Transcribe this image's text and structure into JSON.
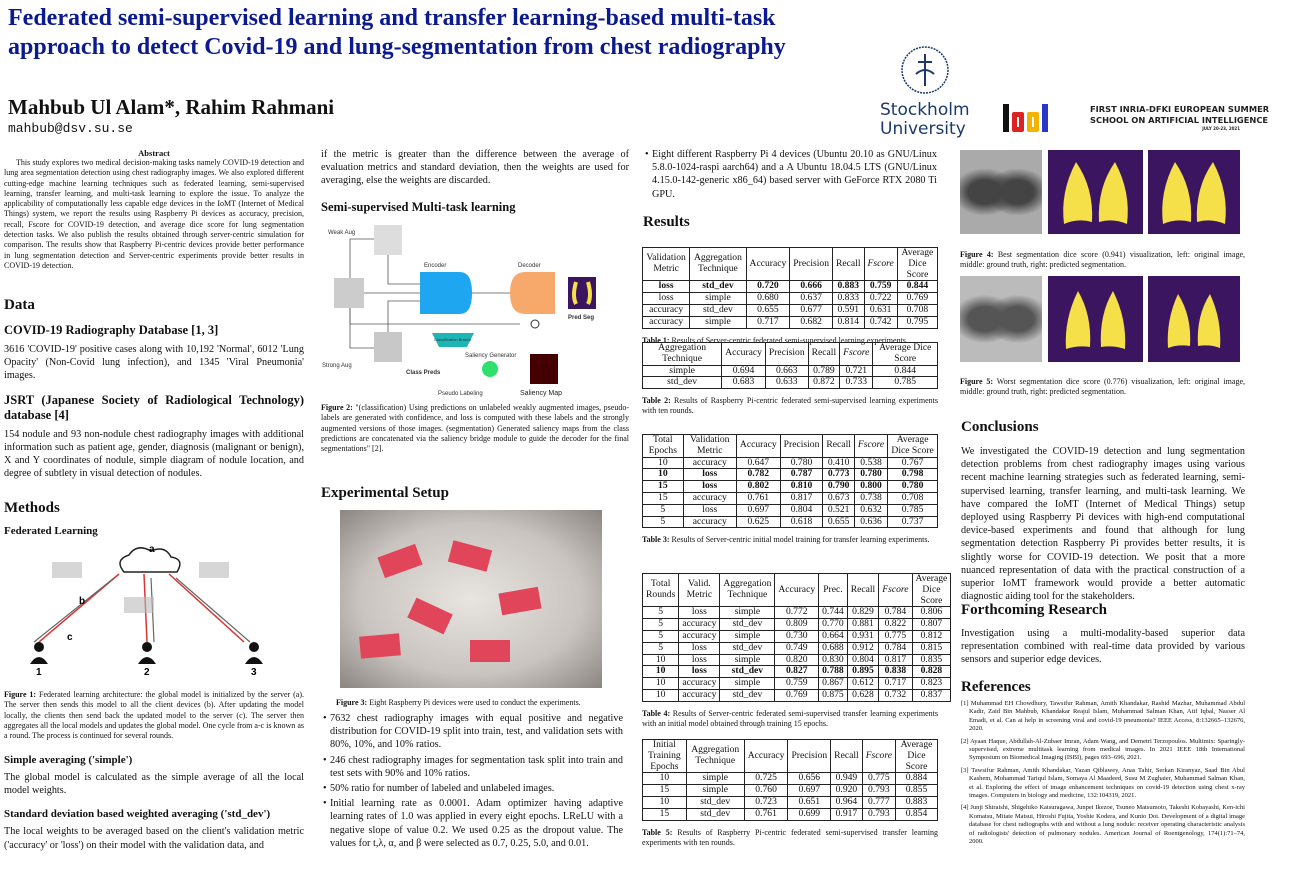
{
  "header": {
    "title": "Federated semi-supervised learning and transfer learning-based multi-task approach to detect Covid-19 and lung-segmentation from chest radiography",
    "authors": "Mahbub Ul Alam*, Rahim Rahmani",
    "email": "mahbub@dsv.su.se",
    "logos": {
      "su_line1": "Stockholm",
      "su_line2": "University",
      "idai": "idai",
      "school_line1": "FIRST INRIA-DFKI EUROPEAN SUMMER",
      "school_line2": "SCHOOL ON ARTIFICIAL INTELLIGENCE",
      "school_date": "JULY 20-23, 2021"
    }
  },
  "abstract": {
    "heading": "Abstract",
    "text": "This study explores two medical decision-making tasks namely COVID-19 detection and lung area segmentation detection using chest radiography images. We also explored different cutting-edge machine learning techniques such as federated learning, semi-supervised learning, transfer learning, and multi-task learning to explore the issue. To analyze the applicability of computationally less capable edge devices in the IoMT (Internet of Medical Things) system, we report the results using Raspberry Pi devices as accuracy, precision, recall, Fscore for COVID-19 detection, and average dice score for lung segmentation detection tasks. We also publish the results obtained through server-centric simulation for comparison. The results show that Raspberry Pi-centric devices provide better performance in lung segmentation detection and Server-centric experiments provide better results in COVID-19 detection."
  },
  "data": {
    "heading": "Data",
    "covid_heading": "COVID-19 Radiography Database [1, 3]",
    "covid_text": "3616 'COVID-19' positive cases along with 10,192 'Normal', 6012 'Lung Opacity' (Non-Covid lung infection), and 1345 'Viral Pneumonia' images.",
    "jsrt_heading": "JSRT (Japanese Society of Radiological Technology) database [4]",
    "jsrt_text": "154 nodule and 93 non-nodule chest radiography images with additional information such as patient age, gender, diagnosis (malignant or benign), X and Y coordinates of nodule, simple diagram of nodule location, and degree of subtlety in visual detection of nodules."
  },
  "methods": {
    "heading": "Methods",
    "fl_heading": "Federated Learning",
    "fig1_labels": {
      "a": "a",
      "b": "b",
      "c": "c",
      "n1": "1",
      "n2": "2",
      "n3": "3"
    },
    "fig1_label": "Figure 1:",
    "fig1_caption": "Federated learning architecture: the global model is initialized by the server (a). The server then sends this model to all the client devices (b). After updating the model locally, the clients then send back the updated model to the server (c). The server then aggregates all the local models and updates the global model. One cycle from a-c is known as a round. The process is continued for several rounds.",
    "simple_heading": "Simple averaging ('simple')",
    "simple_text": "The global model is calculated as the simple average of all the local model weights.",
    "std_heading": "Standard deviation based weighted averaging ('std_dev')",
    "std_text": "The local weights to be averaged based on the client's validation metric ('accuracy' or 'loss') on their model with the validation data, and",
    "std_text_cont": "if the metric is greater than the difference between the average of evaluation metrics and standard deviation, then the weights are used for averaging, else the weights are discarded.",
    "ssl_heading": "Semi-supervised Multi-task learning",
    "fig2_labels": {
      "weak": "Weak Aug",
      "strong": "Strong Aug",
      "encoder": "Encoder",
      "decoder": "Decoder",
      "cls": "Classification Branch",
      "class_preds": "Class Preds",
      "saliency_gen": "Saliency Generator",
      "saliency_map": "Saliency Map",
      "pred_seg": "Pred Seg",
      "pseudo": "Pseudo Labeling"
    },
    "fig2_label": "Figure 2:",
    "fig2_caption": "\"(classification) Using predictions on unlabeled weakly augmented images, pseudo-labels are generated with confidence, and loss is computed with these labels and the strongly augmented versions of those images. (segmentation) Generated saliency maps from the class predictions are concatenated via the saliency bridge module to guide the decoder for the final segmentations\" [2]."
  },
  "setup": {
    "heading": "Experimental Setup",
    "fig3_label": "Figure 3:",
    "fig3_caption": "Eight Raspberry Pi devices were used to conduct the experiments.",
    "bullets": [
      "7632 chest radiography images with equal positive and negative distribution for COVID-19 split into train, test, and validation sets with 80%, 10%, and 10% ratios.",
      "246 chest radiography images for segmentation task split into train and test sets with 90% and 10% ratios.",
      "50% ratio for number of labeled and unlabeled images.",
      "Initial learning rate as 0.0001. Adam optimizer having adaptive learning rates of 1.0 was applied in every eight epochs. LReLU with a negative slope of value 0.2. We used 0.25 as the dropout value. The values for t,λ, α, and β were selected as 0.7, 0.25, 5.0, and 0.01.",
      "Eight different Raspberry Pi 4 devices (Ubuntu 20.10 as GNU/Linux 5.8.0-1024-raspi aarch64) and a A Ubuntu 18.04.5 LTS (GNU/Linux 4.15.0-142-generic x86_64) based server with GeForce RTX 2080 Ti GPU."
    ]
  },
  "results": {
    "heading": "Results",
    "tables": [
      {
        "label": "Table 1:",
        "caption": "Results of Server-centric federated semi-supervised learning experiments.",
        "header": [
          "Validation Metric",
          "Aggregation Technique",
          "Accuracy",
          "Precision",
          "Recall",
          "Fscore",
          "Average Dice Score"
        ],
        "bold_rows": [
          0
        ],
        "rows": [
          [
            "loss",
            "std_dev",
            "0.720",
            "0.666",
            "0.883",
            "0.759",
            "0.844"
          ],
          [
            "loss",
            "simple",
            "0.680",
            "0.637",
            "0.833",
            "0.722",
            "0.769"
          ],
          [
            "accuracy",
            "std_dev",
            "0.655",
            "0.677",
            "0.591",
            "0.631",
            "0.708"
          ],
          [
            "accuracy",
            "simple",
            "0.717",
            "0.682",
            "0.814",
            "0.742",
            "0.795"
          ]
        ]
      },
      {
        "label": "Table 2:",
        "caption": "Results of Raspberry Pi-centric federated semi-supervised learning experiments with ten rounds.",
        "header": [
          "Aggregation Technique",
          "Accuracy",
          "Precision",
          "Recall",
          "Fscore",
          "Average Dice Score"
        ],
        "bold_rows": [],
        "rows": [
          [
            "simple",
            "0.694",
            "0.663",
            "0.789",
            "0.721",
            "0.844"
          ],
          [
            "std_dev",
            "0.683",
            "0.633",
            "0.872",
            "0.733",
            "0.785"
          ]
        ]
      },
      {
        "label": "Table 3:",
        "caption": "Results of Server-centric initial model training for transfer learning experiments.",
        "header": [
          "Total Epochs",
          "Validation Metric",
          "Accuracy",
          "Precision",
          "Recall",
          "Fscore",
          "Average Dice Score"
        ],
        "bold_rows": [
          1,
          2
        ],
        "rows": [
          [
            "10",
            "accuracy",
            "0.647",
            "0.780",
            "0.410",
            "0.538",
            "0.767"
          ],
          [
            "10",
            "loss",
            "0.782",
            "0.787",
            "0.773",
            "0.780",
            "0.798"
          ],
          [
            "15",
            "loss",
            "0.802",
            "0.810",
            "0.790",
            "0.800",
            "0.780"
          ],
          [
            "15",
            "accuracy",
            "0.761",
            "0.817",
            "0.673",
            "0.738",
            "0.708"
          ],
          [
            "5",
            "loss",
            "0.697",
            "0.804",
            "0.521",
            "0.632",
            "0.785"
          ],
          [
            "5",
            "accuracy",
            "0.625",
            "0.618",
            "0.655",
            "0.636",
            "0.737"
          ]
        ]
      },
      {
        "label": "Table 4:",
        "caption": "Results of Server-centric federated semi-supervised transfer learning experiments with an initial model obtained through training 15 epochs.",
        "header": [
          "Total Rounds",
          "Valid. Metric",
          "Aggregation Technique",
          "Accuracy",
          "Prec.",
          "Recall",
          "Fscore",
          "Average Dice Score"
        ],
        "bold_rows": [
          5
        ],
        "rows": [
          [
            "5",
            "loss",
            "simple",
            "0.772",
            "0.744",
            "0.829",
            "0.784",
            "0.806"
          ],
          [
            "5",
            "accuracy",
            "std_dev",
            "0.809",
            "0.770",
            "0.881",
            "0.822",
            "0.807"
          ],
          [
            "5",
            "accuracy",
            "simple",
            "0.730",
            "0.664",
            "0.931",
            "0.775",
            "0.812"
          ],
          [
            "5",
            "loss",
            "std_dev",
            "0.749",
            "0.688",
            "0.912",
            "0.784",
            "0.815"
          ],
          [
            "10",
            "loss",
            "simple",
            "0.820",
            "0.830",
            "0.804",
            "0.817",
            "0.835"
          ],
          [
            "10",
            "loss",
            "std_dev",
            "0.827",
            "0.788",
            "0.895",
            "0.838",
            "0.828"
          ],
          [
            "10",
            "accuracy",
            "simple",
            "0.759",
            "0.867",
            "0.612",
            "0.717",
            "0.823"
          ],
          [
            "10",
            "accuracy",
            "std_dev",
            "0.769",
            "0.875",
            "0.628",
            "0.732",
            "0.837"
          ]
        ]
      },
      {
        "label": "Table 5:",
        "caption": "Results of Raspberry Pi-centric federated semi-supervised transfer learning experiments with ten rounds.",
        "header": [
          "Initial Training Epochs",
          "Aggregation Technique",
          "Accuracy",
          "Precision",
          "Recall",
          "Fscore",
          "Average Dice Score"
        ],
        "bold_rows": [],
        "rows": [
          [
            "10",
            "simple",
            "0.725",
            "0.656",
            "0.949",
            "0.775",
            "0.884"
          ],
          [
            "15",
            "simple",
            "0.760",
            "0.697",
            "0.920",
            "0.793",
            "0.855"
          ],
          [
            "10",
            "std_dev",
            "0.723",
            "0.651",
            "0.964",
            "0.777",
            "0.883"
          ],
          [
            "15",
            "std_dev",
            "0.761",
            "0.699",
            "0.917",
            "0.793",
            "0.854"
          ]
        ]
      }
    ]
  },
  "figures": {
    "fig4_label": "Figure 4:",
    "fig4_caption": "Best segmentation dice score (0.941) visualization, left: original image, middle: ground truth, right: predicted segmentation.",
    "fig5_label": "Figure 5:",
    "fig5_caption": "Worst segmentation dice score (0.776) visualization, left: original image, middle: ground truth, right: predicted segmentation."
  },
  "conclusions": {
    "heading": "Conclusions",
    "text": "We investigated the COVID-19 detection and lung segmentation detection problems from chest radiography images using various recent machine learning strategies such as federated learning, semi-supervised learning, transfer learning, and multi-task learning. We have compared the IoMT (Internet of Medical Things) setup deployed using Raspberry Pi devices with high-end computational device-based experiments and found that although for lung segmentation detection Raspberry Pi provides better results, it is slightly worse for COVID-19 detection. We posit that a more nuanced representation of data with the practical construction of a superior IoMT framework would provide a better automatic diagnostic aiding tool for the stakeholders."
  },
  "forthcoming": {
    "heading": "Forthcoming Research",
    "text": "Investigation using a multi-modality-based superior data representation combined with real-time data provided by various sensors and superior edge devices."
  },
  "references": {
    "heading": "References",
    "items": [
      "[1] Muhammad EH Chowdhury, Tawsifur Rahman, Amith Khandakar, Rashid Mazhar, Muhammad Abdul Kadir, Zaid Bin Mahbub, Khandakar Reajul Islam, Muhammad Salman Khan, Atif Iqbal, Nasser Al Emadi, et al. Can ai help in screening viral and covid-19 pneumonia? IEEE Access, 8:132665–132676, 2020.",
      "[2] Ayaan Haque, Abdullah-Al-Zubaer Imran, Adam Wang, and Demetri Terzopoulos. Multimix: Sparingly-supervised, extreme multitask learning from medical images. In 2021 IEEE 18th International Symposium on Biomedical Imaging (ISBI), pages 693–696, 2021.",
      "[3] Tawsifur Rahman, Amith Khandakar, Yazan Qiblawey, Anas Tahir, Serkan Kiranyaz, Saad Bin Abul Kashem, Mohammad Tariqul Islam, Somaya Al Maadeed, Susu M Zughaier, Muhammad Salman Khan, et al. Exploring the effect of image enhancement techniques on covid-19 detection using chest x-ray images. Computers in biology and medicine, 132:104319, 2021.",
      "[4] Junji Shiraishi, Shigehiko Katsuragawa, Junpei Ikezoe, Tsuneo Matsumoto, Takeshi Kobayashi, Ken-ichi Komatsu, Mitate Matsui, Hiroshi Fujita, Yoshie Kodera, and Kunio Doi. Development of a digital image database for chest radiographs with and without a lung nodule: receiver operating characteristic analysis of radiologists' detection of pulmonary nodules. American Journal of Roentgenology, 174(1):71–74, 2000."
    ]
  },
  "colors": {
    "title": "#0c1a8f",
    "encoder": "#1ea7f0",
    "decoder": "#f7a86b",
    "lung_mask": "#f5e04a",
    "mask_bg": "#3b1560"
  }
}
